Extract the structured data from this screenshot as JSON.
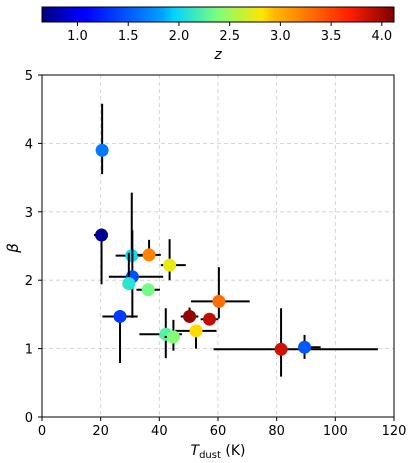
{
  "chart_data": {
    "type": "scatter",
    "xlabel_main": "T",
    "xlabel_sub": "dust",
    "xlabel_unit": " (K)",
    "ylabel": "β",
    "xlim": [
      0,
      120
    ],
    "ylim": [
      0,
      5
    ],
    "xticks": [
      0,
      20,
      40,
      60,
      80,
      100,
      120
    ],
    "yticks": [
      0,
      1,
      2,
      3,
      4,
      5
    ],
    "grid": true,
    "colorbar": {
      "label": "z",
      "range": [
        0.65,
        4.12
      ],
      "ticks": [
        1.0,
        1.5,
        2.0,
        2.5,
        3.0,
        3.5,
        4.0
      ],
      "colormap": "jet",
      "location": "top"
    },
    "points": [
      {
        "x": 20.5,
        "xerr": [
          0,
          0
        ],
        "y": 3.9,
        "yerr": [
          0.35,
          0.68
        ],
        "z": 1.65
      },
      {
        "x": 20.3,
        "xerr": [
          2.6,
          0
        ],
        "y": 2.66,
        "yerr": [
          0.72,
          0.0
        ],
        "z": 0.7
      },
      {
        "x": 30.6,
        "xerr": [
          5.5,
          5.5
        ],
        "y": 2.36,
        "yerr": [
          0.0,
          0.92
        ],
        "z": 2.0
      },
      {
        "x": 36.5,
        "xerr": [
          4.0,
          4.0
        ],
        "y": 2.37,
        "yerr": [
          0.08,
          0.22
        ],
        "z": 3.2
      },
      {
        "x": 43.5,
        "xerr": [
          3.0,
          5.5
        ],
        "y": 2.22,
        "yerr": [
          0.22,
          0.38
        ],
        "z": 2.75
      },
      {
        "x": 30.8,
        "xerr": [
          8.0,
          10.5
        ],
        "y": 2.05,
        "yerr": [
          0.6,
          0.68
        ],
        "z": 1.45
      },
      {
        "x": 29.6,
        "xerr": [
          0,
          0
        ],
        "y": 1.95,
        "yerr": [
          0.0,
          0.45
        ],
        "z": 2.1
      },
      {
        "x": 36.2,
        "xerr": [
          4.0,
          4.0
        ],
        "y": 1.86,
        "yerr": [
          0.0,
          0.0
        ],
        "z": 2.35
      },
      {
        "x": 60.3,
        "xerr": [
          9.5,
          10.5
        ],
        "y": 1.69,
        "yerr": [
          0.25,
          0.5
        ],
        "z": 3.3
      },
      {
        "x": 26.6,
        "xerr": [
          6.0,
          6.0
        ],
        "y": 1.47,
        "yerr": [
          0.68,
          0.0
        ],
        "z": 1.35
      },
      {
        "x": 50.3,
        "xerr": [
          3.0,
          3.0
        ],
        "y": 1.47,
        "yerr": [
          0.07,
          0.13
        ],
        "z": 4.05
      },
      {
        "x": 57.1,
        "xerr": [
          3.0,
          3.0
        ],
        "y": 1.43,
        "yerr": [
          0.07,
          0.07
        ],
        "z": 3.9
      },
      {
        "x": 52.5,
        "xerr": [
          7.0,
          7.0
        ],
        "y": 1.26,
        "yerr": [
          0.26,
          0.0
        ],
        "z": 2.85
      },
      {
        "x": 42.2,
        "xerr": [
          9.0,
          5.5
        ],
        "y": 1.21,
        "yerr": [
          0.35,
          0.38
        ],
        "z": 2.25
      },
      {
        "x": 44.8,
        "xerr": [
          3.0,
          0
        ],
        "y": 1.17,
        "yerr": [
          0.2,
          0.25
        ],
        "z": 2.4
      },
      {
        "x": 81.5,
        "xerr": [
          23.0,
          33.0
        ],
        "y": 0.99,
        "yerr": [
          0.4,
          0.6
        ],
        "z": 3.85
      },
      {
        "x": 89.5,
        "xerr": [
          0,
          5.5
        ],
        "y": 1.02,
        "yerr": [
          0.17,
          0.18
        ],
        "z": 1.5
      }
    ]
  }
}
